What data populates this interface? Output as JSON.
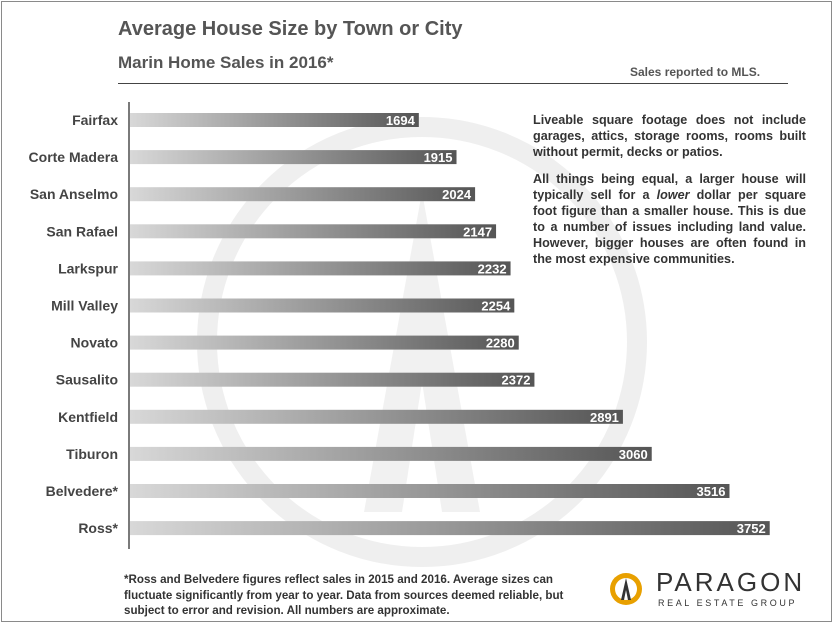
{
  "header": {
    "title": "Average House Size by Town or City",
    "subtitle": "Marin Home Sales in 2016*",
    "source": "Sales reported to MLS."
  },
  "note": {
    "p1": "Liveable square footage does not include garages, attics, storage rooms, rooms built without permit, decks or patios.",
    "p2_before": "All things being equal, a larger house will typically sell for a ",
    "p2_emphasis": "lower",
    "p2_after": " dollar per square foot figure than a smaller house. This is due to a number of issues including land value. However, bigger houses are often found in the most expensive communities."
  },
  "footnote": "*Ross and Belvedere figures reflect sales in 2015 and 2016.  Average sizes can fluctuate significantly from year to year.  Data from sources deemed reliable, but subject to error and revision. All numbers are approximate.",
  "logo": {
    "name": "PARAGON",
    "tagline": "REAL ESTATE GROUP",
    "accent_color": "#e8a000"
  },
  "chart_data": {
    "type": "bar",
    "orientation": "horizontal",
    "categories": [
      "Fairfax",
      "Corte Madera",
      "San Anselmo",
      "San Rafael",
      "Larkspur",
      "Mill Valley",
      "Novato",
      "Sausalito",
      "Kentfield",
      "Tiburon",
      "Belvedere*",
      "Ross*"
    ],
    "values": [
      1694,
      1915,
      2024,
      2147,
      2232,
      2254,
      2280,
      2372,
      2891,
      3060,
      3516,
      3752
    ],
    "data_labels": [
      "1694",
      "1915",
      "2024",
      "2147",
      "2232",
      "2254",
      "2280",
      "2372",
      "2891",
      "3060",
      "3516",
      "3752"
    ],
    "grid": false,
    "legend": "none",
    "bar_gradient": [
      "#d8d8d8",
      "#555555"
    ]
  }
}
